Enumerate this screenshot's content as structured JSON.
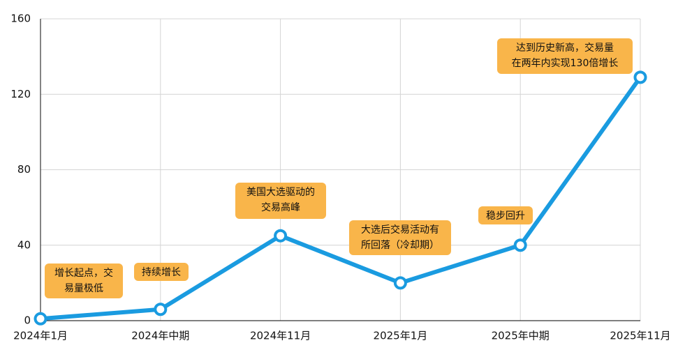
{
  "chart_data": {
    "type": "line",
    "categories": [
      "2024年1月",
      "2024年中期",
      "2024年11月",
      "2025年1月",
      "2025年中期",
      "2025年11月"
    ],
    "values": [
      1,
      6,
      45,
      20,
      40,
      129
    ],
    "color": "#1a9be0",
    "ylim": [
      0,
      160
    ],
    "yticks": [
      0,
      40,
      80,
      120,
      160
    ],
    "grid": true,
    "annotations": [
      {
        "lines": [
          "增长起点，交",
          "易量极低"
        ]
      },
      {
        "lines": [
          "持续增长"
        ]
      },
      {
        "lines": [
          "美国大选驱动的",
          "交易高峰"
        ]
      },
      {
        "lines": [
          "大选后交易活动有",
          "所回落（冷却期）"
        ]
      },
      {
        "lines": [
          "稳步回升"
        ]
      },
      {
        "lines": [
          "达到历史新高，交易量",
          "在两年内实现130倍增长"
        ]
      }
    ]
  }
}
